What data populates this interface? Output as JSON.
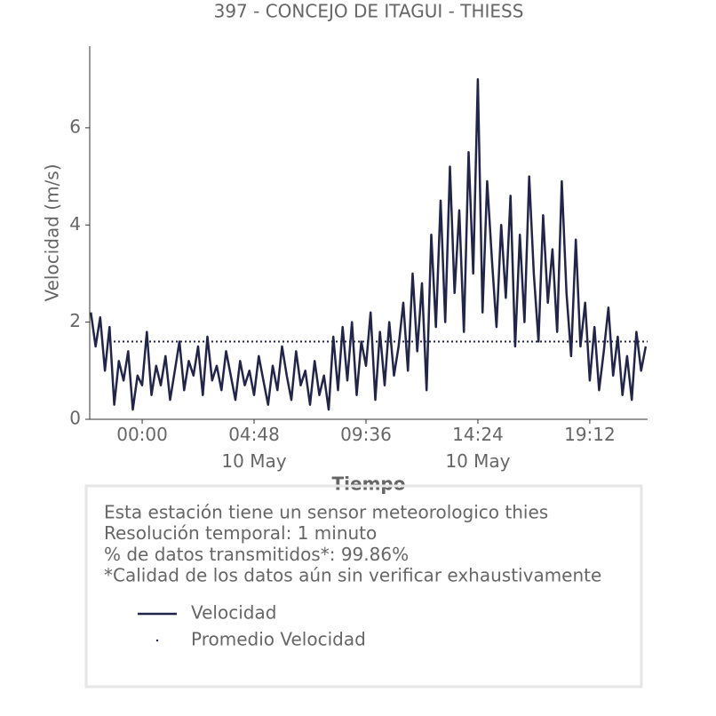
{
  "chart_data": {
    "type": "line",
    "title": "397 - CONCEJO DE ITAGUI - THIESS",
    "xlabel": "Tiempo",
    "ylabel": "Velocidad (m/s)",
    "xlim": [
      -2.25,
      21.68
    ],
    "ylim": [
      0,
      7.68
    ],
    "xticks": [
      {
        "value": 0,
        "label": "00:00"
      },
      {
        "value": 4.8,
        "label": "04:48\n10 May"
      },
      {
        "value": 9.6,
        "label": "09:36"
      },
      {
        "value": 14.4,
        "label": "14:24\n10 May"
      },
      {
        "value": 19.2,
        "label": "19:12"
      }
    ],
    "yticks": [
      0,
      2,
      4,
      6
    ],
    "grid": false,
    "x": [
      -2.2,
      -2.0,
      -1.8,
      -1.6,
      -1.4,
      -1.2,
      -1.0,
      -0.8,
      -0.6,
      -0.4,
      -0.2,
      0.0,
      0.2,
      0.4,
      0.6,
      0.8,
      1.0,
      1.2,
      1.4,
      1.6,
      1.8,
      2.0,
      2.2,
      2.4,
      2.6,
      2.8,
      3.0,
      3.2,
      3.4,
      3.6,
      3.8,
      4.0,
      4.2,
      4.4,
      4.6,
      4.8,
      5.0,
      5.2,
      5.4,
      5.6,
      5.8,
      6.0,
      6.2,
      6.4,
      6.6,
      6.8,
      7.0,
      7.2,
      7.4,
      7.6,
      7.8,
      8.0,
      8.2,
      8.4,
      8.6,
      8.8,
      9.0,
      9.2,
      9.4,
      9.6,
      9.8,
      10.0,
      10.2,
      10.4,
      10.6,
      10.8,
      11.0,
      11.2,
      11.4,
      11.6,
      11.8,
      12.0,
      12.2,
      12.4,
      12.6,
      12.8,
      13.0,
      13.2,
      13.4,
      13.6,
      13.8,
      14.0,
      14.2,
      14.4,
      14.6,
      14.8,
      15.0,
      15.2,
      15.4,
      15.6,
      15.8,
      16.0,
      16.2,
      16.4,
      16.6,
      16.8,
      17.0,
      17.2,
      17.4,
      17.6,
      17.8,
      18.0,
      18.2,
      18.4,
      18.6,
      18.8,
      19.0,
      19.2,
      19.4,
      19.6,
      19.8,
      20.0,
      20.2,
      20.4,
      20.6,
      20.8,
      21.0,
      21.2,
      21.4,
      21.6
    ],
    "series": [
      {
        "name": "Velocidad",
        "color": "#22244a",
        "values": [
          2.2,
          1.5,
          2.1,
          1.0,
          1.9,
          0.3,
          1.2,
          0.8,
          1.4,
          0.2,
          0.9,
          0.7,
          1.8,
          0.5,
          1.1,
          0.7,
          1.3,
          0.4,
          1.0,
          1.6,
          0.6,
          1.2,
          0.9,
          1.5,
          0.5,
          1.7,
          0.8,
          1.1,
          0.6,
          1.4,
          0.9,
          0.4,
          1.2,
          0.7,
          1.0,
          0.5,
          1.3,
          0.8,
          0.3,
          1.1,
          0.6,
          1.5,
          0.9,
          0.4,
          1.4,
          0.7,
          1.0,
          0.3,
          1.2,
          0.5,
          0.9,
          0.2,
          1.7,
          0.6,
          1.9,
          0.8,
          2.0,
          0.5,
          1.6,
          1.1,
          2.2,
          0.4,
          1.8,
          0.7,
          2.0,
          0.9,
          1.5,
          2.4,
          1.0,
          3.0,
          1.4,
          2.8,
          0.6,
          3.8,
          1.9,
          4.5,
          2.0,
          5.2,
          2.6,
          4.3,
          1.8,
          5.5,
          3.0,
          7.0,
          2.2,
          4.9,
          3.3,
          1.9,
          4.0,
          2.5,
          4.6,
          1.5,
          3.8,
          2.0,
          5.0,
          3.0,
          1.6,
          4.2,
          2.4,
          3.5,
          1.8,
          4.9,
          2.6,
          1.3,
          3.7,
          1.5,
          2.4,
          0.8,
          1.9,
          0.6,
          1.4,
          2.3,
          0.9,
          1.7,
          0.5,
          1.3,
          0.4,
          1.8,
          1.0,
          1.5
        ]
      },
      {
        "name": "Promedio Velocidad",
        "color": "#22244a",
        "value": 1.6
      }
    ],
    "info": [
      "Esta estación tiene un sensor meteorologico thies",
      "Resolución temporal: 1 minuto",
      "% de datos transmitidos*: 99.86%",
      "*Calidad de los datos aún sin verificar exhaustivamente"
    ]
  }
}
